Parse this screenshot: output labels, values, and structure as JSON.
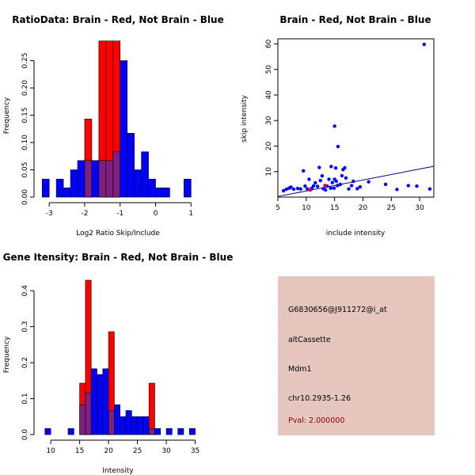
{
  "colors": {
    "brain": "#ff0000",
    "not_brain": "#0000ff",
    "overlap": "#7f1f7f",
    "fit_line": "#00008b",
    "info_bg": "#e6c7bf",
    "pval_text": "#8b0000"
  },
  "chart_data": [
    {
      "id": "ratio-hist",
      "type": "bar",
      "title": "RatioData: Brain - Red, Not Brain - Blue",
      "xlabel": "Log2 Ratio Skip/Include",
      "ylabel": "Frequency",
      "xlim": [
        -3.25,
        1.15
      ],
      "ylim": [
        0,
        0.29
      ],
      "xticks": [
        -3,
        -2,
        -1,
        0,
        1
      ],
      "yticks": [
        0.0,
        0.05,
        0.1,
        0.15,
        0.2,
        0.25
      ],
      "ytick_labels": [
        "0.00",
        "0.05",
        "0.10",
        "0.15",
        "0.20",
        "0.25"
      ],
      "bin_edges": [
        -3.2,
        -3.0,
        -2.8,
        -2.6,
        -2.4,
        -2.2,
        -2.0,
        -1.8,
        -1.6,
        -1.4,
        -1.2,
        -1.0,
        -0.8,
        -0.6,
        -0.4,
        -0.2,
        0.0,
        0.2,
        0.4,
        0.6,
        0.8,
        1.0
      ],
      "series": [
        {
          "name": "Brain",
          "values": [
            0,
            0,
            0,
            0,
            0,
            0,
            0.143,
            0,
            0.286,
            0.286,
            0.286,
            0,
            0,
            0,
            0,
            0,
            0,
            0,
            0,
            0,
            0
          ]
        },
        {
          "name": "Not Brain",
          "values": [
            0.033,
            0,
            0.033,
            0.017,
            0.05,
            0.067,
            0.067,
            0.067,
            0.067,
            0.067,
            0.083,
            0.25,
            0.117,
            0.05,
            0.083,
            0.033,
            0.017,
            0.017,
            0,
            0,
            0.033
          ]
        }
      ]
    },
    {
      "id": "intensity-scatter",
      "type": "scatter",
      "title": "Brain - Red, Not Brain - Blue",
      "xlabel": "include intensity",
      "ylabel": "skip intensity",
      "xlim": [
        5,
        32.5
      ],
      "ylim": [
        0,
        62
      ],
      "xticks": [
        5,
        10,
        15,
        20,
        25,
        30
      ],
      "yticks": [
        10,
        20,
        30,
        40,
        50,
        60
      ],
      "fit_line": {
        "intercept": -1.9,
        "slope": 0.43
      },
      "series": [
        {
          "name": "Not Brain",
          "points": [
            [
              30.8,
              59.8
            ],
            [
              15.0,
              27.8
            ],
            [
              15.6,
              19.8
            ],
            [
              9.5,
              10.3
            ],
            [
              12.3,
              11.6
            ],
            [
              14.4,
              12.0
            ],
            [
              15.2,
              11.4
            ],
            [
              16.5,
              10.8
            ],
            [
              16.8,
              11.5
            ],
            [
              17.0,
              7.5
            ],
            [
              18.3,
              6.2
            ],
            [
              19.5,
              4.0
            ],
            [
              21.0,
              6.0
            ],
            [
              24.0,
              5.0
            ],
            [
              28.0,
              4.5
            ],
            [
              29.5,
              4.3
            ],
            [
              31.8,
              3.2
            ],
            [
              26.0,
              3.0
            ],
            [
              18.0,
              4.5
            ],
            [
              19.0,
              3.3
            ],
            [
              17.5,
              3.2
            ],
            [
              6.0,
              2.5
            ],
            [
              6.5,
              3.1
            ],
            [
              7.0,
              3.5
            ],
            [
              7.3,
              3.9
            ],
            [
              7.8,
              3.1
            ],
            [
              8.5,
              3.4
            ],
            [
              9.0,
              3.2
            ],
            [
              9.8,
              4.3
            ],
            [
              10.2,
              3.2
            ],
            [
              10.7,
              2.8
            ],
            [
              11.0,
              3.5
            ],
            [
              11.3,
              4.4
            ],
            [
              11.6,
              5.6
            ],
            [
              12.0,
              4.2
            ],
            [
              12.5,
              6.5
            ],
            [
              12.8,
              8.3
            ],
            [
              13.0,
              3.3
            ],
            [
              13.4,
              2.8
            ],
            [
              13.7,
              4.3
            ],
            [
              14.0,
              7.0
            ],
            [
              14.3,
              3.5
            ],
            [
              14.6,
              5.7
            ],
            [
              15.0,
              7.0
            ],
            [
              15.3,
              6.2
            ],
            [
              15.5,
              4.5
            ],
            [
              16.0,
              5.0
            ],
            [
              16.3,
              8.4
            ],
            [
              14.9,
              3.5
            ],
            [
              10.5,
              7.0
            ]
          ]
        },
        {
          "name": "Brain",
          "points": [
            [
              10.6,
              2.9
            ],
            [
              13.3,
              4.6
            ]
          ]
        }
      ]
    },
    {
      "id": "gene-hist",
      "type": "bar",
      "title": "Gene Itensity: Brain - Red, Not Brain - Blue",
      "xlabel": "Intensity",
      "ylabel": "Frequency",
      "xlim": [
        8.2,
        35.2
      ],
      "ylim": [
        0,
        0.44
      ],
      "xticks": [
        10,
        15,
        20,
        25,
        30,
        35
      ],
      "yticks": [
        0.0,
        0.1,
        0.2,
        0.3,
        0.4
      ],
      "ytick_labels": [
        "0.0",
        "0.1",
        "0.2",
        "0.3",
        "0.4"
      ],
      "bin_edges": [
        9,
        10,
        11,
        12,
        13,
        14,
        15,
        16,
        17,
        18,
        19,
        20,
        21,
        22,
        23,
        24,
        25,
        26,
        27,
        28,
        29,
        30,
        31,
        32,
        33,
        34,
        35
      ],
      "series": [
        {
          "name": "Brain",
          "values": [
            0,
            0,
            0,
            0,
            0,
            0,
            0.143,
            0.429,
            0,
            0,
            0,
            0.286,
            0,
            0,
            0,
            0,
            0,
            0,
            0.143,
            0,
            0,
            0,
            0,
            0,
            0,
            0
          ]
        },
        {
          "name": "Not Brain",
          "values": [
            0.017,
            0,
            0,
            0,
            0.017,
            0,
            0.083,
            0.117,
            0.183,
            0.167,
            0.183,
            0.067,
            0.083,
            0.05,
            0.067,
            0.05,
            0.05,
            0.05,
            0.017,
            0.017,
            0,
            0.017,
            0,
            0.017,
            0,
            0.017
          ]
        }
      ]
    }
  ],
  "info": {
    "probe_id": "G6830656@J911272@i_at",
    "event_type": "altCassette",
    "gene": "Mdm1",
    "location": "chr10.2935-1.26",
    "pval": "Pval: 2.000000"
  }
}
